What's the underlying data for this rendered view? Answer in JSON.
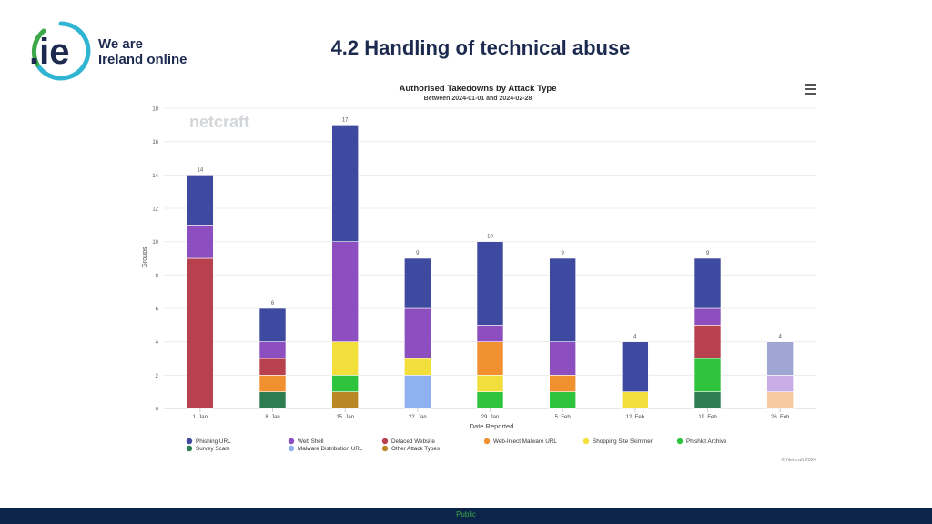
{
  "header": {
    "logo_mark": ".ie",
    "logo_line1": "We are",
    "logo_line2": "Ireland online",
    "slide_title": "4.2 Handling of technical abuse"
  },
  "footer": {
    "label": "Public"
  },
  "colors": {
    "phishing_url": "#3d4aa0",
    "web_shell": "#8d4fc0",
    "defaced_website": "#b8414f",
    "web_inject_malware_url": "#f0902f",
    "shopping_site_skimmer": "#f2df3b",
    "phishkit_archive": "#2fc43e",
    "survey_scam": "#2e7d52",
    "malware_distribution_url": "#8fb1f2",
    "other_attack_types": "#b98726",
    "accent_navy": "#0c2447"
  },
  "chart_data": {
    "type": "bar",
    "stacked": true,
    "title": "Authorised Takedowns by Attack Type",
    "subtitle": "Between 2024-01-01 and 2024-02-28",
    "xlabel": "Date Reported",
    "ylabel": "Groups",
    "ylim": [
      0,
      18
    ],
    "yticks": [
      0,
      2,
      4,
      6,
      8,
      10,
      12,
      14,
      16,
      18
    ],
    "watermark": "netcraft",
    "credit": "© Netcraft 2024",
    "categories": [
      "1. Jan",
      "8. Jan",
      "15. Jan",
      "22. Jan",
      "29. Jan",
      "5. Feb",
      "12. Feb",
      "19. Feb",
      "26. Feb"
    ],
    "totals": [
      14,
      6,
      17,
      9,
      10,
      9,
      4,
      9,
      4
    ],
    "series": [
      {
        "name": "Other Attack Types",
        "key": "other_attack_types",
        "color": "#b98726",
        "values": [
          0,
          0,
          1,
          0,
          0,
          0,
          0,
          0,
          0
        ]
      },
      {
        "name": "Survey Scam",
        "key": "survey_scam",
        "color": "#2e7d52",
        "values": [
          0,
          1,
          0,
          0,
          0,
          0,
          0,
          1,
          0
        ]
      },
      {
        "name": "Phishkit Archive",
        "key": "phishkit_archive",
        "color": "#2fc43e",
        "values": [
          0,
          0,
          1,
          0,
          1,
          1,
          0,
          2,
          0
        ]
      },
      {
        "name": "Malware Distribution URL",
        "key": "malware_distribution_url",
        "color": "#8fb1f2",
        "values": [
          0,
          0,
          0,
          2,
          0,
          0,
          0,
          0,
          0
        ]
      },
      {
        "name": "Shopping Site Skimmer",
        "key": "shopping_site_skimmer",
        "color": "#f2df3b",
        "values": [
          0,
          0,
          2,
          1,
          1,
          0,
          1,
          0,
          0
        ]
      },
      {
        "name": "Web-Inject Malware URL",
        "key": "web_inject_malware_url",
        "color": "#f0902f",
        "values": [
          0,
          1,
          0,
          0,
          2,
          1,
          0,
          0,
          0
        ]
      },
      {
        "name": "Defaced Website",
        "key": "defaced_website",
        "color": "#b8414f",
        "values": [
          9,
          1,
          0,
          0,
          0,
          0,
          0,
          2,
          0
        ]
      },
      {
        "name": "Web Shell",
        "key": "web_shell",
        "color": "#8d4fc0",
        "values": [
          2,
          1,
          6,
          3,
          1,
          2,
          0,
          1,
          0
        ]
      },
      {
        "name": "Phishing URL",
        "key": "phishing_url",
        "color": "#3d4aa0",
        "values": [
          3,
          2,
          7,
          3,
          5,
          5,
          3,
          3,
          0
        ]
      }
    ],
    "faded_segments": [
      {
        "category": "26. Feb",
        "values": [
          {
            "name": "Web-Inject Malware URL",
            "color": "#f6c9a1",
            "value": 1
          },
          {
            "name": "Web Shell",
            "color": "#c9ade6",
            "value": 1
          },
          {
            "name": "Phishing URL",
            "color": "#9fa6d4",
            "value": 2
          }
        ]
      }
    ],
    "legend": [
      {
        "label": "Phishing URL",
        "color": "#3d4aa0"
      },
      {
        "label": "Web Shell",
        "color": "#8d4fc0"
      },
      {
        "label": "Defaced Website",
        "color": "#b8414f"
      },
      {
        "label": "Web-Inject Malware URL",
        "color": "#f0902f"
      },
      {
        "label": "Shopping Site Skimmer",
        "color": "#f2df3b"
      },
      {
        "label": "Phishkit Archive",
        "color": "#2fc43e"
      },
      {
        "label": "Survey Scam",
        "color": "#2e7d52"
      },
      {
        "label": "Malware Distribution URL",
        "color": "#8fb1f2"
      },
      {
        "label": "Other Attack Types",
        "color": "#b98726"
      }
    ]
  }
}
